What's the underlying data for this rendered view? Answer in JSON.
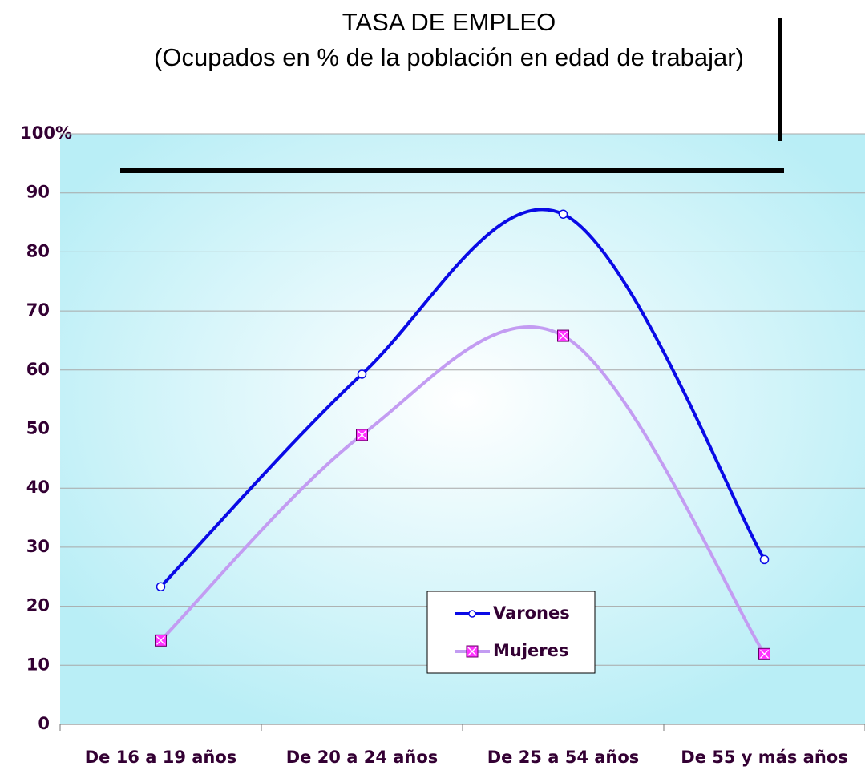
{
  "chart_data": {
    "type": "line",
    "title": "TASA DE EMPLEO",
    "subtitle": "(Ocupados en % de la población en edad de trabajar)",
    "categories": [
      "De 16 a 19 años",
      "De 20 a 24 años",
      "De 25 a 54 años",
      "De 55 y más años"
    ],
    "series": [
      {
        "name": "Varones",
        "color": "#0a0ae6",
        "marker": "circle",
        "values": [
          23.3,
          59.3,
          86.4,
          27.9
        ]
      },
      {
        "name": "Mujeres",
        "color": "#c39cf2",
        "marker_color": "#ff33ff",
        "marker": "square",
        "values": [
          14.2,
          49,
          65.8,
          11.9
        ]
      }
    ],
    "ylim": [
      0,
      100
    ],
    "yticks": [
      0,
      10,
      20,
      30,
      40,
      50,
      60,
      70,
      80,
      90,
      {
        "value": 100,
        "label": "100%"
      }
    ],
    "grid": true,
    "smooth": true,
    "legend": "bottom-center"
  }
}
